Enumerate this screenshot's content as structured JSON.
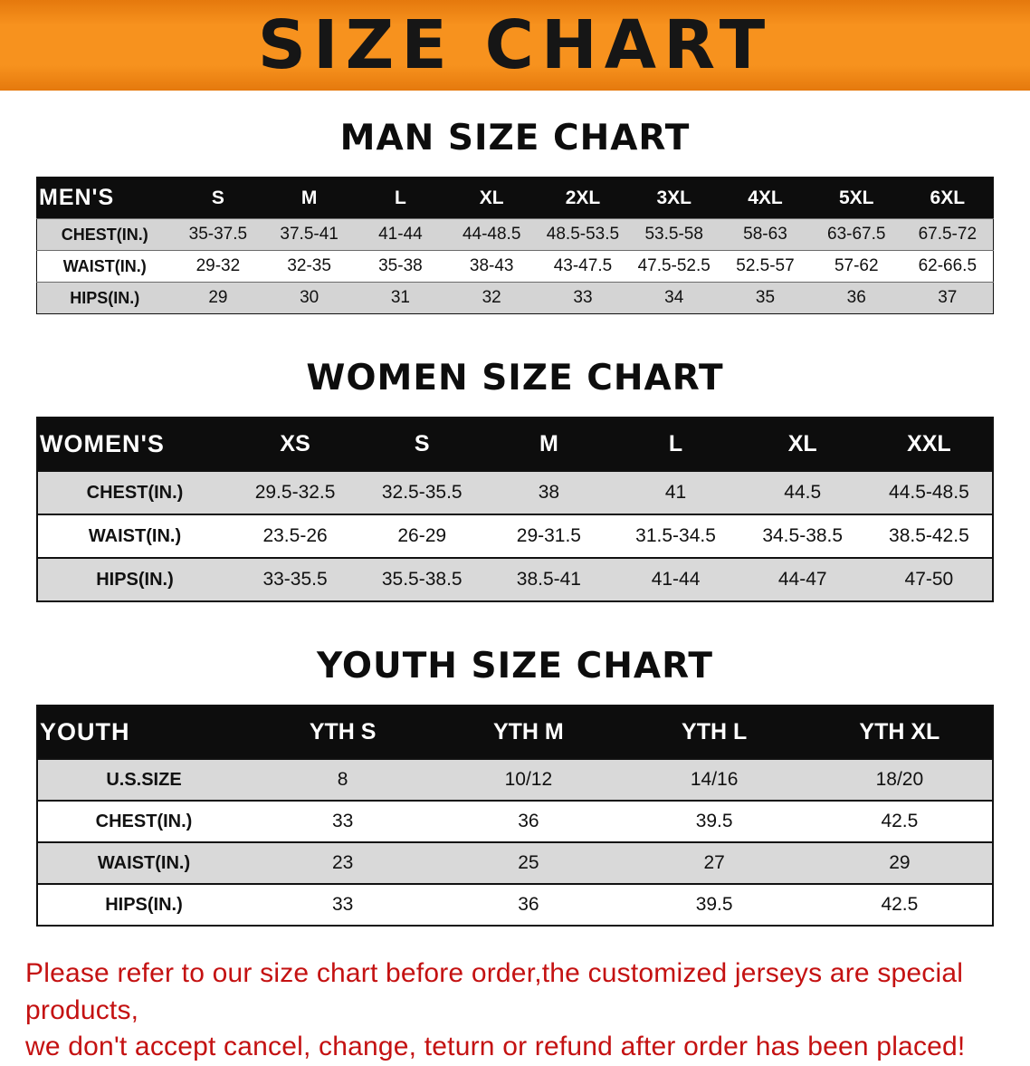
{
  "banner": {
    "title": "SIZE CHART",
    "bg_color": "#f7921e",
    "text_color": "#161616"
  },
  "sections": [
    {
      "id": "men",
      "heading": "MAN SIZE CHART",
      "table": {
        "header_label": "MEN'S",
        "columns": [
          "S",
          "M",
          "L",
          "XL",
          "2XL",
          "3XL",
          "4XL",
          "5XL",
          "6XL"
        ],
        "rows": [
          {
            "label": "CHEST(IN.)",
            "values": [
              "35-37.5",
              "37.5-41",
              "41-44",
              "44-48.5",
              "48.5-53.5",
              "53.5-58",
              "58-63",
              "63-67.5",
              "67.5-72"
            ]
          },
          {
            "label": "WAIST(IN.)",
            "values": [
              "29-32",
              "32-35",
              "35-38",
              "38-43",
              "43-47.5",
              "47.5-52.5",
              "52.5-57",
              "57-62",
              "62-66.5"
            ]
          },
          {
            "label": "HIPS(IN.)",
            "values": [
              "29",
              "30",
              "31",
              "32",
              "33",
              "34",
              "35",
              "36",
              "37"
            ]
          }
        ]
      }
    },
    {
      "id": "women",
      "heading": "WOMEN SIZE CHART",
      "table": {
        "header_label": "WOMEN'S",
        "columns": [
          "XS",
          "S",
          "M",
          "L",
          "XL",
          "XXL"
        ],
        "rows": [
          {
            "label": "CHEST(IN.)",
            "values": [
              "29.5-32.5",
              "32.5-35.5",
              "38",
              "41",
              "44.5",
              "44.5-48.5"
            ]
          },
          {
            "label": "WAIST(IN.)",
            "values": [
              "23.5-26",
              "26-29",
              "29-31.5",
              "31.5-34.5",
              "34.5-38.5",
              "38.5-42.5"
            ]
          },
          {
            "label": "HIPS(IN.)",
            "values": [
              "33-35.5",
              "35.5-38.5",
              "38.5-41",
              "41-44",
              "44-47",
              "47-50"
            ]
          }
        ]
      }
    },
    {
      "id": "youth",
      "heading": "YOUTH SIZE CHART",
      "table": {
        "header_label": "YOUTH",
        "columns": [
          "YTH S",
          "YTH M",
          "YTH L",
          "YTH XL"
        ],
        "rows": [
          {
            "label": "U.S.SIZE",
            "values": [
              "8",
              "10/12",
              "14/16",
              "18/20"
            ]
          },
          {
            "label": "CHEST(IN.)",
            "values": [
              "33",
              "36",
              "39.5",
              "42.5"
            ]
          },
          {
            "label": "WAIST(IN.)",
            "values": [
              "23",
              "25",
              "27",
              "29"
            ]
          },
          {
            "label": "HIPS(IN.)",
            "values": [
              "33",
              "36",
              "39.5",
              "42.5"
            ]
          }
        ]
      }
    }
  ],
  "footer": {
    "line1": "Please refer to our size chart before order,the customized jerseys are special products,",
    "line2": "we don't accept cancel, change, teturn or refund after order has been placed!",
    "text_color": "#c41111"
  }
}
